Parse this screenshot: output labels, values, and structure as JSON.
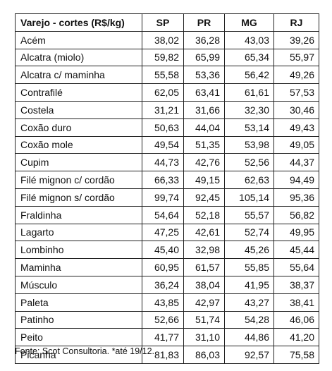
{
  "table": {
    "headers": [
      "Varejo - cortes (R$/kg)",
      "SP",
      "PR",
      "MG",
      "RJ"
    ],
    "rows": [
      [
        "Acém",
        "38,02",
        "36,28",
        "43,03",
        "39,26"
      ],
      [
        "Alcatra (miolo)",
        "59,82",
        "65,99",
        "65,34",
        "55,97"
      ],
      [
        "Alcatra c/ maminha",
        "55,58",
        "53,36",
        "56,42",
        "49,26"
      ],
      [
        "Contrafilé",
        "62,05",
        "63,41",
        "61,61",
        "57,53"
      ],
      [
        "Costela",
        "31,21",
        "31,66",
        "32,30",
        "30,46"
      ],
      [
        "Coxão duro",
        "50,63",
        "44,04",
        "53,14",
        "49,43"
      ],
      [
        "Coxão mole",
        "49,54",
        "51,35",
        "53,98",
        "49,05"
      ],
      [
        "Cupim",
        "44,73",
        "42,76",
        "52,56",
        "44,37"
      ],
      [
        "Filé mignon c/ cordão",
        "66,33",
        "49,15",
        "62,63",
        "94,49"
      ],
      [
        "Filé mignon s/ cordão",
        "99,74",
        "92,45",
        "105,14",
        "95,36"
      ],
      [
        "Fraldinha",
        "54,64",
        "52,18",
        "55,57",
        "56,82"
      ],
      [
        "Lagarto",
        "47,25",
        "42,61",
        "52,74",
        "49,95"
      ],
      [
        "Lombinho",
        "45,40",
        "32,98",
        "45,26",
        "45,44"
      ],
      [
        "Maminha",
        "60,95",
        "61,57",
        "55,85",
        "55,64"
      ],
      [
        "Músculo",
        "36,24",
        "38,04",
        "41,95",
        "38,37"
      ],
      [
        "Paleta",
        "43,85",
        "42,97",
        "43,27",
        "38,41"
      ],
      [
        "Patinho",
        "52,66",
        "51,74",
        "54,28",
        "46,06"
      ],
      [
        "Peito",
        "41,77",
        "31,10",
        "44,86",
        "41,20"
      ],
      [
        "Picanha",
        "81,83",
        "86,03",
        "92,57",
        "75,58"
      ]
    ]
  },
  "footer": {
    "source": "Fonte: Scot Consultoria. *até 19/12."
  }
}
